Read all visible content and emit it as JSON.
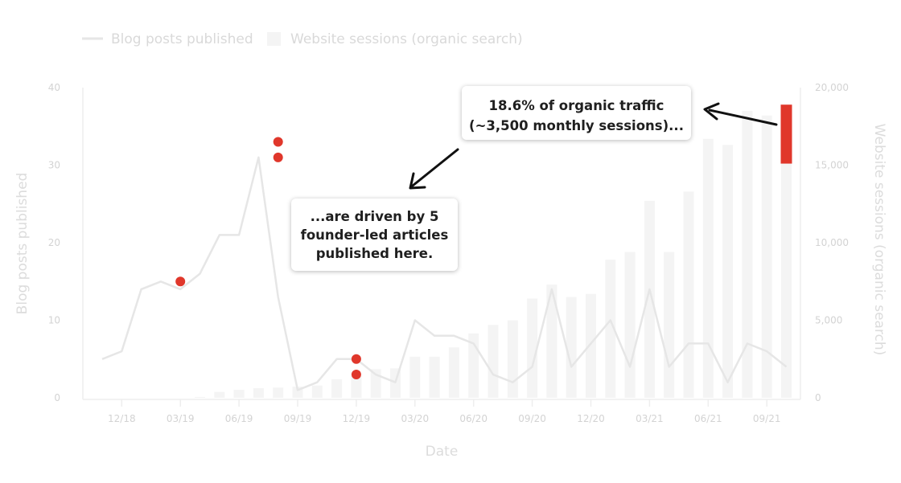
{
  "legend": {
    "line_label": "Blog posts published",
    "bar_label": "Website sessions (organic search)"
  },
  "colors": {
    "line": "#e6e6e6",
    "bar": "#f4f4f4",
    "highlight": "#e0372b",
    "axis_text": "#d3d3d3"
  },
  "callouts": {
    "top_line1": "18.6% of organic traffic",
    "top_line2": "(~3,500 monthly sessions)...",
    "mid_line1": "...are driven by 5",
    "mid_line2": "founder-led articles",
    "mid_line3": "published here."
  },
  "chart_data": {
    "type": "bar+line",
    "xlabel": "Date",
    "ylabel_left": "Blog posts published",
    "ylabel_right": "Website sessions (organic search)",
    "ylim_left": [
      0,
      40
    ],
    "ylim_right": [
      0,
      20000
    ],
    "yticks_left": [
      "0",
      "10",
      "20",
      "30",
      "40"
    ],
    "yticks_right": [
      "0",
      "5,000",
      "10,000",
      "15,000",
      "20,000"
    ],
    "x_tick_labels": [
      {
        "index": 1,
        "label": "12/18"
      },
      {
        "index": 4,
        "label": "03/19"
      },
      {
        "index": 7,
        "label": "06/19"
      },
      {
        "index": 10,
        "label": "09/19"
      },
      {
        "index": 13,
        "label": "12/19"
      },
      {
        "index": 16,
        "label": "03/20"
      },
      {
        "index": 19,
        "label": "06/20"
      },
      {
        "index": 22,
        "label": "09/20"
      },
      {
        "index": 25,
        "label": "12/20"
      },
      {
        "index": 28,
        "label": "03/21"
      },
      {
        "index": 31,
        "label": "06/21"
      },
      {
        "index": 34,
        "label": "09/21"
      }
    ],
    "months": [
      "2018-11",
      "2018-12",
      "2019-01",
      "2019-02",
      "2019-03",
      "2019-04",
      "2019-05",
      "2019-06",
      "2019-07",
      "2019-08",
      "2019-09",
      "2019-10",
      "2019-11",
      "2019-12",
      "2020-01",
      "2020-02",
      "2020-03",
      "2020-04",
      "2020-05",
      "2020-06",
      "2020-07",
      "2020-08",
      "2020-09",
      "2020-10",
      "2020-11",
      "2020-12",
      "2021-01",
      "2021-02",
      "2021-03",
      "2021-04",
      "2021-05",
      "2021-06",
      "2021-07",
      "2021-08",
      "2021-09",
      "2021-10"
    ],
    "series": [
      {
        "name": "Blog posts published",
        "type": "line",
        "axis": "left",
        "values": [
          5,
          6,
          14,
          15,
          14,
          16,
          21,
          21,
          31,
          13,
          1,
          2,
          5,
          5,
          3,
          2,
          10,
          8,
          8,
          7,
          3,
          2,
          4,
          14,
          4,
          7,
          10,
          4,
          14,
          4,
          7,
          7,
          2,
          7,
          6,
          4
        ]
      },
      {
        "name": "Website sessions (organic search)",
        "type": "bar",
        "axis": "right",
        "values": [
          0,
          0,
          0,
          0,
          0,
          60,
          380,
          520,
          620,
          660,
          720,
          790,
          1200,
          1400,
          1850,
          1900,
          2650,
          2650,
          3250,
          4150,
          4700,
          5000,
          6400,
          7300,
          6500,
          6700,
          8900,
          9400,
          12700,
          9400,
          13300,
          16700,
          16300,
          18500,
          18200,
          18900
        ]
      }
    ],
    "highlight_points": [
      {
        "index": 4,
        "value": 15
      },
      {
        "index": 9,
        "value": 33
      },
      {
        "index": 9,
        "value": 31
      },
      {
        "index": 13,
        "value": 5
      },
      {
        "index": 13,
        "value": 3
      }
    ],
    "highlight_bar": {
      "index": 35,
      "from": 15100,
      "to": 18900
    }
  }
}
